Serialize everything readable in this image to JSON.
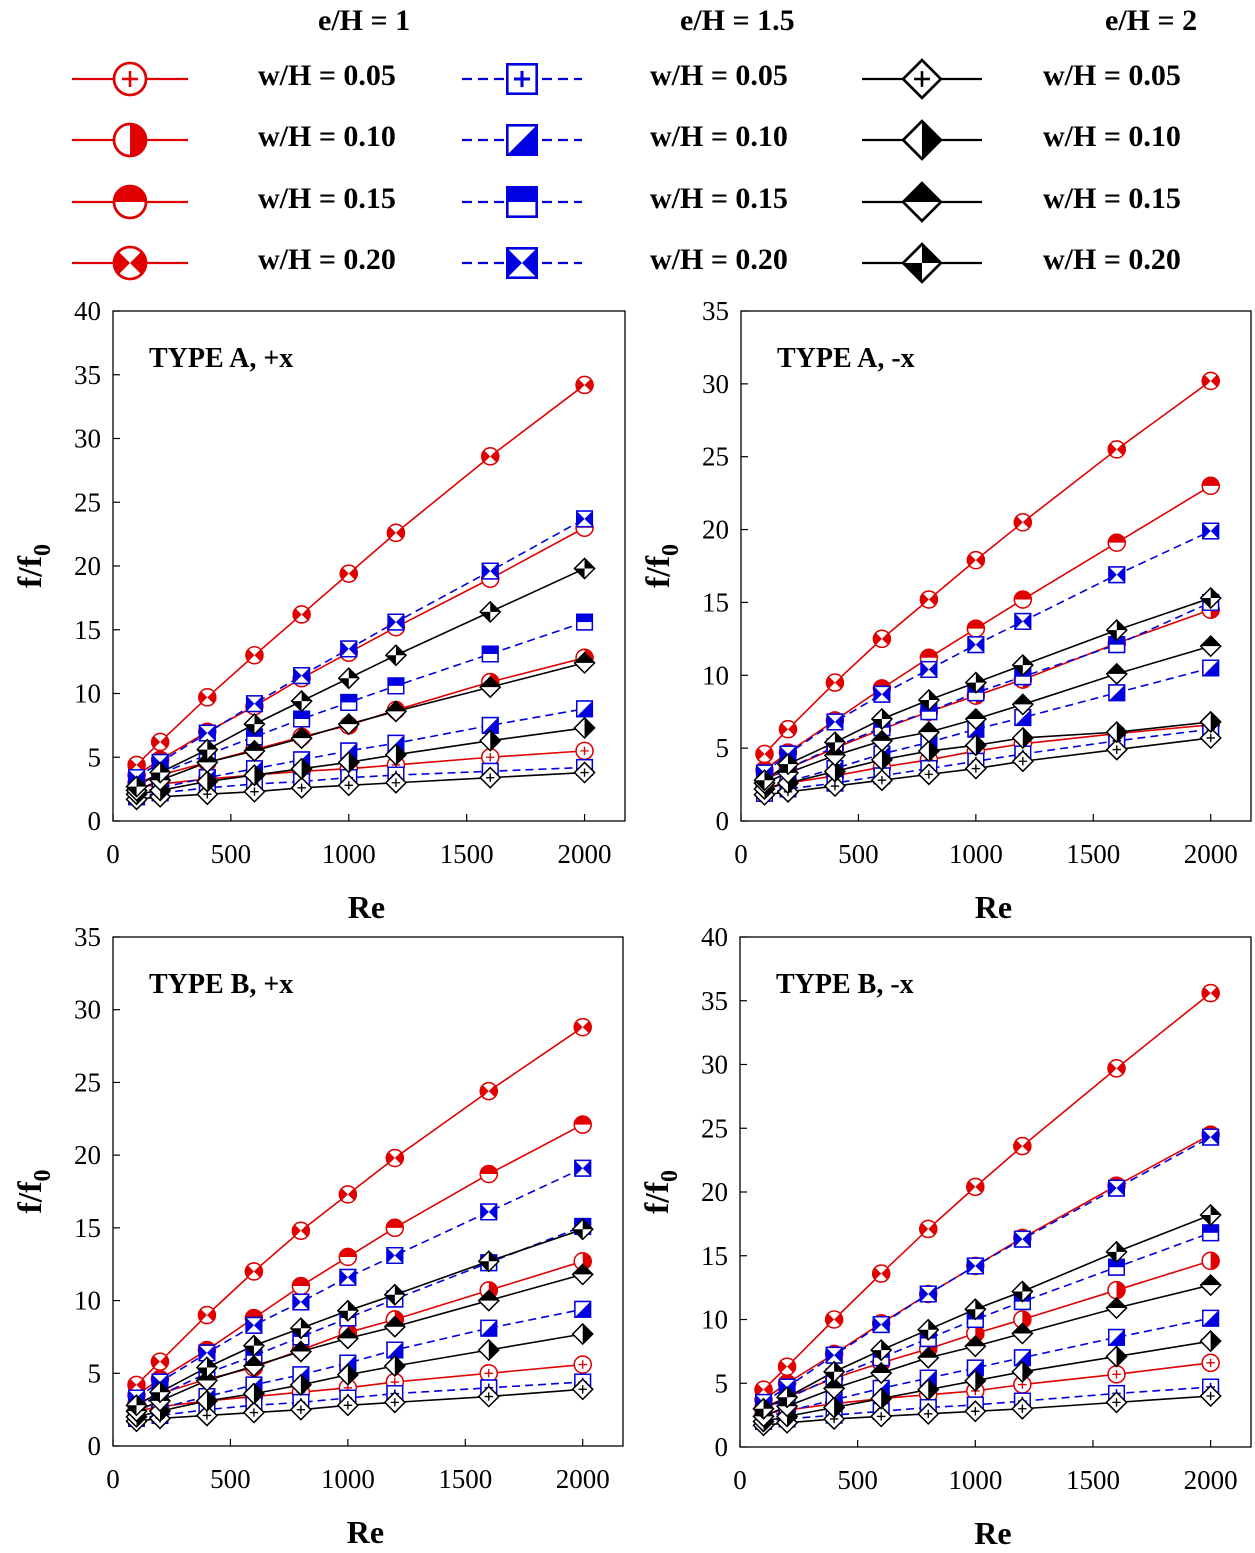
{
  "legend": {
    "groups": [
      {
        "header": "e/H = 1",
        "color": "#e00000",
        "dash": false,
        "items": [
          {
            "label": "w/H = 0.05",
            "marker": "circle-plus"
          },
          {
            "label": "w/H = 0.10",
            "marker": "circle-half-right"
          },
          {
            "label": "w/H = 0.15",
            "marker": "circle-half-top"
          },
          {
            "label": "w/H = 0.20",
            "marker": "circle-bowtie"
          }
        ]
      },
      {
        "header": "e/H = 1.5",
        "color": "#0000e0",
        "dash": true,
        "items": [
          {
            "label": "w/H = 0.05",
            "marker": "square-plus"
          },
          {
            "label": "w/H = 0.10",
            "marker": "square-triangle"
          },
          {
            "label": "w/H = 0.15",
            "marker": "square-half-top"
          },
          {
            "label": "w/H = 0.20",
            "marker": "square-bowtie"
          }
        ]
      },
      {
        "header": "e/H = 2",
        "color": "#000000",
        "dash": false,
        "items": [
          {
            "label": "w/H = 0.05",
            "marker": "diamond-plus"
          },
          {
            "label": "w/H = 0.10",
            "marker": "diamond-half-right"
          },
          {
            "label": "w/H = 0.15",
            "marker": "diamond-half-top"
          },
          {
            "label": "w/H = 0.20",
            "marker": "diamond-quarters"
          }
        ]
      }
    ]
  },
  "chart_data": [
    {
      "type": "line",
      "title": "TYPE A, +x",
      "xlabel": "Re",
      "ylabel": "f/f0",
      "x": [
        100,
        200,
        400,
        600,
        800,
        1000,
        1200,
        1600,
        2000
      ],
      "xlim": [
        0,
        2000
      ],
      "xticks": [
        0,
        500,
        1000,
        1500,
        2000
      ],
      "xtick_labels": [
        "0",
        "500",
        "1000",
        "1500",
        "2000"
      ],
      "ylim": [
        0,
        40
      ],
      "yticks": [
        0,
        5,
        10,
        15,
        20,
        25,
        30,
        35,
        40
      ],
      "ytick_labels": [
        "0",
        "5",
        "10",
        "15",
        "20",
        "25",
        "30",
        "35",
        "40"
      ],
      "series": [
        {
          "name": "e/H=1, w/H=0.05",
          "values": [
            2.6,
            2.9,
            3.3,
            3.6,
            3.9,
            4.1,
            4.4,
            5.0,
            5.5
          ]
        },
        {
          "name": "e/H=1, w/H=0.10",
          "values": [
            3.0,
            3.6,
            4.6,
            5.6,
            6.6,
            7.5,
            8.7,
            10.9,
            12.8
          ]
        },
        {
          "name": "e/H=1, w/H=0.15",
          "values": [
            3.6,
            4.8,
            7.0,
            9.0,
            11.2,
            13.2,
            15.2,
            19.0,
            23.0
          ]
        },
        {
          "name": "e/H=1, w/H=0.20",
          "values": [
            4.4,
            6.2,
            9.7,
            13.0,
            16.2,
            19.4,
            22.6,
            28.6,
            34.2
          ]
        },
        {
          "name": "e/H=1.5, w/H=0.05",
          "values": [
            1.9,
            2.2,
            2.6,
            2.9,
            3.1,
            3.4,
            3.6,
            3.9,
            4.2
          ]
        },
        {
          "name": "e/H=1.5, w/H=0.10",
          "values": [
            2.2,
            2.6,
            3.4,
            4.1,
            4.8,
            5.5,
            6.1,
            7.5,
            8.8
          ]
        },
        {
          "name": "e/H=1.5, w/H=0.15",
          "values": [
            2.9,
            3.7,
            5.2,
            6.6,
            8.0,
            9.3,
            10.6,
            13.1,
            15.6
          ]
        },
        {
          "name": "e/H=1.5, w/H=0.20",
          "values": [
            3.4,
            4.6,
            6.9,
            9.2,
            11.4,
            13.5,
            15.6,
            19.6,
            23.7
          ]
        },
        {
          "name": "e/H=2, w/H=0.05",
          "values": [
            1.7,
            1.9,
            2.1,
            2.3,
            2.6,
            2.8,
            3.0,
            3.4,
            3.8
          ]
        },
        {
          "name": "e/H=2, w/H=0.10",
          "values": [
            2.1,
            2.4,
            3.1,
            3.6,
            4.1,
            4.6,
            5.2,
            6.3,
            7.3
          ]
        },
        {
          "name": "e/H=2, w/H=0.15",
          "values": [
            2.4,
            3.2,
            4.6,
            5.5,
            6.5,
            7.6,
            8.6,
            10.5,
            12.4
          ]
        },
        {
          "name": "e/H=2, w/H=0.20",
          "values": [
            2.7,
            3.8,
            5.6,
            7.6,
            9.4,
            11.2,
            13.0,
            16.4,
            19.8
          ]
        }
      ]
    },
    {
      "type": "line",
      "title": "TYPE A, -x",
      "xlabel": "Re",
      "ylabel": "f/f0",
      "x": [
        100,
        200,
        400,
        600,
        800,
        1000,
        1200,
        1600,
        2000
      ],
      "xlim": [
        0,
        2000
      ],
      "xticks": [
        0,
        500,
        1000,
        1500,
        2000
      ],
      "xtick_labels": [
        "0",
        "500",
        "1000",
        "1500",
        "2000"
      ],
      "ylim": [
        0,
        35
      ],
      "yticks": [
        0,
        5,
        10,
        15,
        20,
        25,
        30,
        35
      ],
      "ytick_labels": [
        "0",
        "5",
        "10",
        "15",
        "20",
        "25",
        "30",
        "35"
      ],
      "series": [
        {
          "name": "e/H=1, w/H=0.05",
          "values": [
            2.3,
            2.6,
            3.1,
            3.7,
            4.2,
            4.8,
            5.3,
            6.0,
            6.6
          ]
        },
        {
          "name": "e/H=1, w/H=0.10",
          "values": [
            2.8,
            3.6,
            5.0,
            6.3,
            7.5,
            8.6,
            9.7,
            12.2,
            14.5
          ]
        },
        {
          "name": "e/H=1, w/H=0.15",
          "values": [
            3.5,
            4.7,
            6.9,
            9.1,
            11.2,
            13.2,
            15.2,
            19.1,
            23.0
          ]
        },
        {
          "name": "e/H=1, w/H=0.20",
          "values": [
            4.6,
            6.3,
            9.5,
            12.5,
            15.2,
            17.9,
            20.5,
            25.5,
            30.2
          ]
        },
        {
          "name": "e/H=1.5, w/H=0.05",
          "values": [
            1.9,
            2.2,
            2.6,
            3.1,
            3.6,
            4.1,
            4.6,
            5.5,
            6.3
          ]
        },
        {
          "name": "e/H=1.5, w/H=0.10",
          "values": [
            2.2,
            2.7,
            3.6,
            4.6,
            5.4,
            6.3,
            7.1,
            8.8,
            10.5
          ]
        },
        {
          "name": "e/H=1.5, w/H=0.15",
          "values": [
            2.8,
            3.6,
            5.1,
            6.4,
            7.5,
            8.8,
            9.9,
            12.1,
            15.0
          ]
        },
        {
          "name": "e/H=1.5, w/H=0.20",
          "values": [
            3.3,
            4.6,
            6.8,
            8.7,
            10.4,
            12.1,
            13.7,
            16.9,
            19.9
          ]
        },
        {
          "name": "e/H=2, w/H=0.05",
          "values": [
            1.8,
            2.0,
            2.4,
            2.8,
            3.2,
            3.6,
            4.1,
            4.9,
            5.7
          ]
        },
        {
          "name": "e/H=2, w/H=0.10",
          "values": [
            2.2,
            2.6,
            3.4,
            4.2,
            4.8,
            5.2,
            5.7,
            6.1,
            6.8
          ]
        },
        {
          "name": "e/H=2, w/H=0.15",
          "values": [
            2.6,
            3.3,
            4.5,
            5.5,
            6.1,
            7.0,
            8.0,
            10.1,
            12.0
          ]
        },
        {
          "name": "e/H=2, w/H=0.20",
          "values": [
            2.8,
            3.9,
            5.4,
            7.0,
            8.3,
            9.5,
            10.7,
            13.1,
            15.3
          ]
        }
      ]
    },
    {
      "type": "line",
      "title": "TYPE B, +x",
      "xlabel": "Re",
      "ylabel": "f/f0",
      "x": [
        100,
        200,
        400,
        600,
        800,
        1000,
        1200,
        1600,
        2000
      ],
      "xlim": [
        0,
        2000
      ],
      "xticks": [
        0,
        500,
        1000,
        1500,
        2000
      ],
      "xtick_labels": [
        "0",
        "500",
        "1000",
        "1500",
        "2000"
      ],
      "ylim": [
        0,
        35
      ],
      "yticks": [
        0,
        5,
        10,
        15,
        20,
        25,
        30,
        35
      ],
      "ytick_labels": [
        "0",
        "5",
        "10",
        "15",
        "20",
        "25",
        "30",
        "35"
      ],
      "series": [
        {
          "name": "e/H=1, w/H=0.05",
          "values": [
            2.4,
            2.7,
            3.1,
            3.4,
            3.7,
            4.0,
            4.4,
            5.0,
            5.6
          ]
        },
        {
          "name": "e/H=1, w/H=0.10",
          "values": [
            2.9,
            3.6,
            4.6,
            5.4,
            6.6,
            7.8,
            8.7,
            10.7,
            12.7
          ]
        },
        {
          "name": "e/H=1, w/H=0.15",
          "values": [
            3.5,
            4.6,
            6.6,
            8.8,
            11.0,
            13.0,
            15.0,
            18.7,
            22.1
          ]
        },
        {
          "name": "e/H=1, w/H=0.20",
          "values": [
            4.2,
            5.8,
            9.0,
            12.0,
            14.8,
            17.3,
            19.8,
            24.4,
            28.8
          ]
        },
        {
          "name": "e/H=1.5, w/H=0.05",
          "values": [
            1.9,
            2.1,
            2.5,
            2.8,
            3.0,
            3.3,
            3.6,
            4.0,
            4.4
          ]
        },
        {
          "name": "e/H=1.5, w/H=0.10",
          "values": [
            2.2,
            2.6,
            3.4,
            4.2,
            4.9,
            5.7,
            6.6,
            8.1,
            9.4
          ]
        },
        {
          "name": "e/H=1.5, w/H=0.15",
          "values": [
            2.7,
            3.5,
            5.0,
            6.2,
            7.5,
            8.8,
            10.1,
            12.6,
            15.1
          ]
        },
        {
          "name": "e/H=1.5, w/H=0.20",
          "values": [
            3.3,
            4.4,
            6.4,
            8.3,
            9.9,
            11.6,
            13.1,
            16.1,
            19.1
          ]
        },
        {
          "name": "e/H=2, w/H=0.05",
          "values": [
            1.7,
            1.9,
            2.1,
            2.3,
            2.5,
            2.8,
            3.0,
            3.4,
            3.9
          ]
        },
        {
          "name": "e/H=2, w/H=0.10",
          "values": [
            2.0,
            2.4,
            3.1,
            3.6,
            4.2,
            4.9,
            5.5,
            6.6,
            7.7
          ]
        },
        {
          "name": "e/H=2, w/H=0.15",
          "values": [
            2.4,
            3.1,
            4.5,
            5.5,
            6.5,
            7.4,
            8.2,
            10.0,
            11.8
          ]
        },
        {
          "name": "e/H=2, w/H=0.20",
          "values": [
            2.8,
            3.7,
            5.4,
            6.9,
            8.1,
            9.3,
            10.4,
            12.7,
            14.9
          ]
        }
      ]
    },
    {
      "type": "line",
      "title": "TYPE B, -x",
      "xlabel": "Re",
      "ylabel": "f/f0",
      "x": [
        100,
        200,
        400,
        600,
        800,
        1000,
        1200,
        1600,
        2000
      ],
      "xlim": [
        0,
        2000
      ],
      "xticks": [
        0,
        500,
        1000,
        1500,
        2000
      ],
      "xtick_labels": [
        "0",
        "500",
        "1000",
        "1500",
        "2000"
      ],
      "ylim": [
        0,
        40
      ],
      "yticks": [
        0,
        5,
        10,
        15,
        20,
        25,
        30,
        35,
        40
      ],
      "ytick_labels": [
        "0",
        "5",
        "10",
        "15",
        "20",
        "25",
        "30",
        "35",
        "40"
      ],
      "series": [
        {
          "name": "e/H=1, w/H=0.05",
          "values": [
            2.6,
            2.9,
            3.4,
            3.8,
            4.1,
            4.4,
            4.9,
            5.7,
            6.6
          ]
        },
        {
          "name": "e/H=1, w/H=0.10",
          "values": [
            3.1,
            3.9,
            5.4,
            6.6,
            7.7,
            8.9,
            10.0,
            12.3,
            14.6
          ]
        },
        {
          "name": "e/H=1, w/H=0.15",
          "values": [
            3.7,
            5.0,
            7.3,
            9.7,
            12.0,
            14.2,
            16.4,
            20.5,
            24.5
          ]
        },
        {
          "name": "e/H=1, w/H=0.20",
          "values": [
            4.5,
            6.3,
            10.0,
            13.6,
            17.1,
            20.4,
            23.6,
            29.7,
            35.6
          ]
        },
        {
          "name": "e/H=1.5, w/H=0.05",
          "values": [
            2.0,
            2.2,
            2.5,
            2.8,
            3.1,
            3.3,
            3.6,
            4.2,
            4.7
          ]
        },
        {
          "name": "e/H=1.5, w/H=0.10",
          "values": [
            2.3,
            2.8,
            3.7,
            4.6,
            5.4,
            6.2,
            7.0,
            8.6,
            10.1
          ]
        },
        {
          "name": "e/H=1.5, w/H=0.15",
          "values": [
            2.9,
            3.8,
            5.5,
            7.0,
            8.5,
            10.0,
            11.4,
            14.1,
            16.8
          ]
        },
        {
          "name": "e/H=1.5, w/H=0.20",
          "values": [
            3.5,
            4.7,
            7.2,
            9.6,
            12.0,
            14.2,
            16.3,
            20.3,
            24.3
          ]
        },
        {
          "name": "e/H=2, w/H=0.05",
          "values": [
            1.7,
            1.9,
            2.2,
            2.4,
            2.6,
            2.8,
            3.0,
            3.5,
            4.0
          ]
        },
        {
          "name": "e/H=2, w/H=0.10",
          "values": [
            2.0,
            2.4,
            3.1,
            3.8,
            4.5,
            5.2,
            5.9,
            7.1,
            8.3
          ]
        },
        {
          "name": "e/H=2, w/H=0.15",
          "values": [
            2.4,
            3.2,
            4.6,
            5.8,
            7.0,
            7.9,
            8.9,
            10.9,
            12.7
          ]
        },
        {
          "name": "e/H=2, w/H=0.20",
          "values": [
            3.0,
            3.9,
            5.9,
            7.6,
            9.2,
            10.8,
            12.2,
            15.3,
            18.2
          ]
        }
      ]
    }
  ]
}
